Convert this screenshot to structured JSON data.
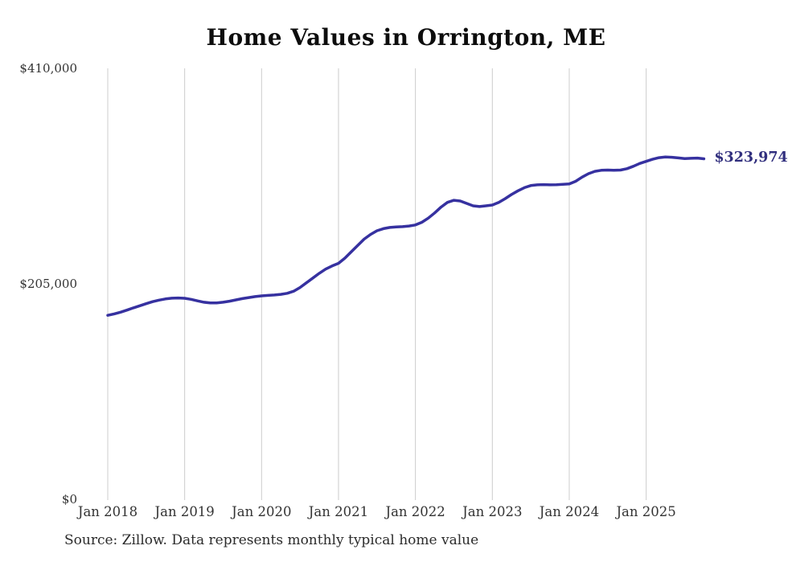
{
  "chart": {
    "title": "Home Values in Orrington, ME",
    "end_label": "$323,974",
    "source": "Source: Zillow. Data represents monthly typical home value"
  },
  "chart_data": {
    "type": "line",
    "title": "Home Values in Orrington, ME",
    "xlabel": "",
    "ylabel": "",
    "ylim": [
      0,
      410000
    ],
    "grid": "vertical-only",
    "grid_color": "#cccccc",
    "line_color": "#3631a0",
    "end_label_color": "#312f7e",
    "x_ticks": [
      "Jan 2018",
      "Jan 2019",
      "Jan 2020",
      "Jan 2021",
      "Jan 2022",
      "Jan 2023",
      "Jan 2024",
      "Jan 2025"
    ],
    "y_ticks": [
      {
        "label": "$410,000",
        "value": 410000
      },
      {
        "label": "$205,000",
        "value": 205000
      },
      {
        "label": "$0",
        "value": 0
      }
    ],
    "series": [
      {
        "name": "Monthly typical home value",
        "start_month": "2018-01",
        "end_month": "2025-10",
        "last_value": 323974,
        "values": [
          175000,
          176400,
          178000,
          180000,
          182100,
          184100,
          186100,
          188000,
          189500,
          190600,
          191300,
          191500,
          191200,
          190200,
          188800,
          187500,
          186800,
          186900,
          187500,
          188500,
          189700,
          190900,
          191900,
          192800,
          193500,
          194000,
          194400,
          195000,
          196000,
          198000,
          201500,
          206000,
          210500,
          215000,
          219000,
          222000,
          224500,
          229500,
          235500,
          241500,
          247500,
          252000,
          255500,
          257500,
          258600,
          259100,
          259400,
          260000,
          261000,
          263500,
          267500,
          272500,
          278000,
          282500,
          284500,
          283800,
          281500,
          279200,
          278500,
          279200,
          280000,
          282500,
          286000,
          290000,
          293500,
          296500,
          298500,
          299200,
          299400,
          299200,
          299300,
          299600,
          300000,
          302500,
          306500,
          309800,
          312000,
          313000,
          313200,
          313000,
          313200,
          314500,
          316800,
          319500,
          321500,
          323500,
          325000,
          325600,
          325400,
          324800,
          324200,
          324400,
          324600,
          323974
        ]
      }
    ],
    "annotations": [
      {
        "text": "$323,974",
        "attached_to": "last-point"
      }
    ]
  }
}
